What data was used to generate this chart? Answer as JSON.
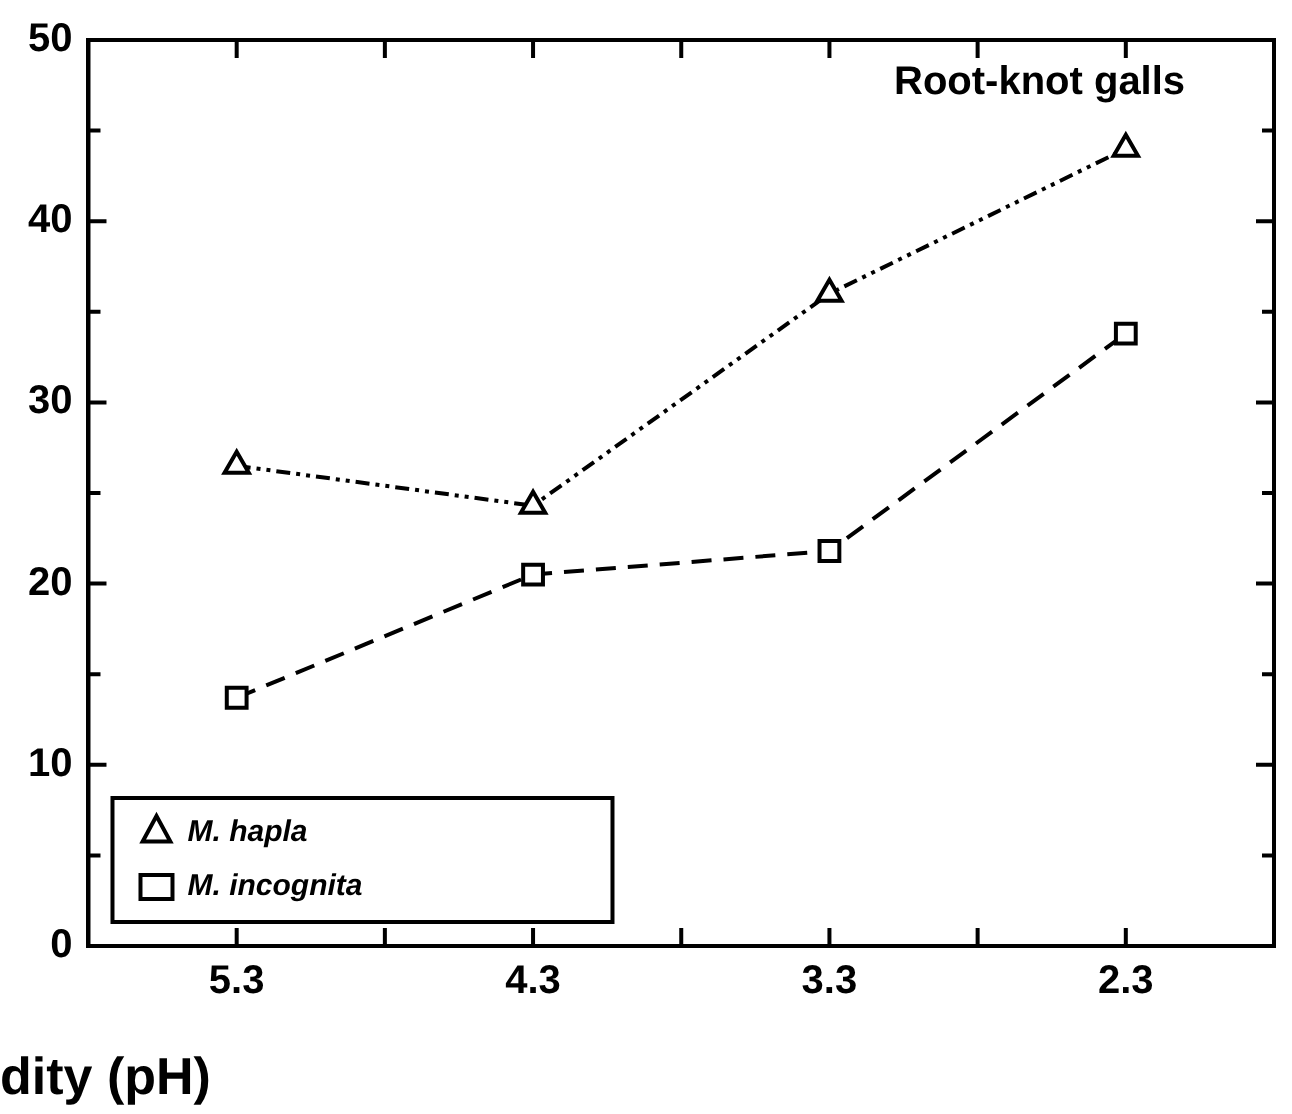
{
  "chart_data": {
    "type": "line",
    "title": "Root-knot galls",
    "xlabel": "dity (pH)",
    "categories": [
      "5.3",
      "4.3",
      "3.3",
      "2.3"
    ],
    "series": [
      {
        "name": "M. hapla",
        "color": "#000000",
        "values": [
          26.5,
          24.3,
          36.0,
          44.0
        ],
        "marker": "triangle",
        "line_style": "dashdot"
      },
      {
        "name": "M. incognita",
        "color": "#000000",
        "values": [
          13.7,
          20.5,
          21.8,
          33.8
        ],
        "marker": "square",
        "line_style": "dashed"
      }
    ],
    "ylim": [
      0,
      50
    ],
    "yticks": [
      0,
      {
        "value": 5,
        "label": null
      },
      10,
      {
        "value": 15,
        "label": null
      },
      20,
      {
        "value": 25,
        "label": null
      },
      30,
      {
        "value": 35,
        "label": null
      },
      40,
      {
        "value": 45,
        "label": null
      },
      50
    ],
    "grid": false,
    "legend": "bottom left"
  }
}
